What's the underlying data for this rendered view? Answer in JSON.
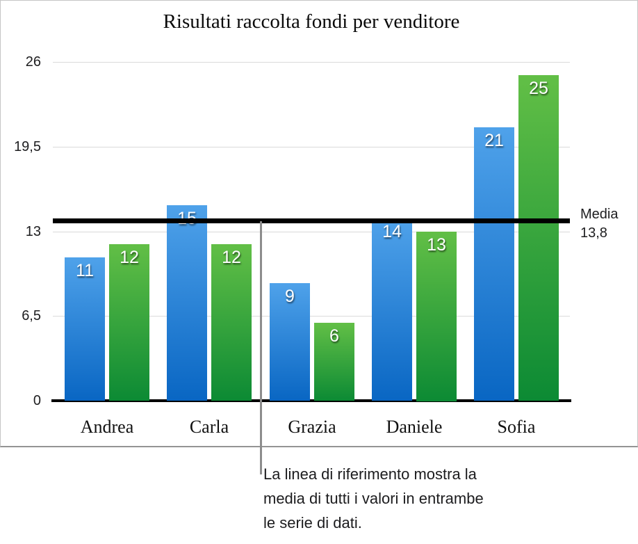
{
  "chart_data": {
    "type": "bar",
    "title": "Risultati raccolta fondi per venditore",
    "categories": [
      "Andrea",
      "Carla",
      "Grazia",
      "Daniele",
      "Sofia"
    ],
    "series": [
      {
        "id": "blue",
        "color_top": "#4FA2EA",
        "color_bottom": "#0966C3",
        "values": [
          11,
          15,
          9,
          14,
          21
        ]
      },
      {
        "id": "green",
        "color_top": "#62BF46",
        "color_bottom": "#0C8A34",
        "values": [
          12,
          12,
          6,
          13,
          25
        ]
      }
    ],
    "y_axis": {
      "min": 0,
      "max": 26,
      "ticks": [
        "26",
        "19,5",
        "13",
        "6,5",
        "0"
      ]
    },
    "grid": true,
    "legend": "none",
    "reference_line": {
      "value": 13.8,
      "label_line1": "Media",
      "label_line2": "13,8",
      "color": "#000000"
    }
  },
  "annotation": {
    "lines": [
      "La linea di riferimento mostra la",
      "media di tutti i valori in entrambe",
      "le serie di dati."
    ]
  },
  "colors": {
    "gridline": "#DADADA",
    "axis": "#000000",
    "callout_line": "#8C8C8C",
    "frame_border": "#C5C5C5",
    "value_label_text": "#FFFFFF"
  }
}
